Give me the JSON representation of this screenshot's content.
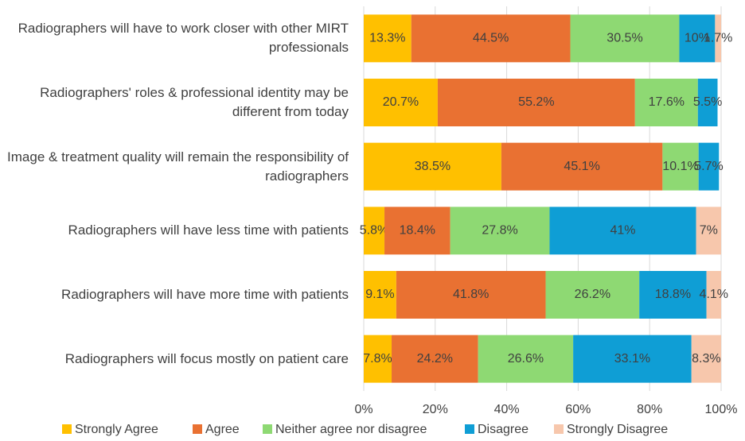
{
  "chart_data": {
    "type": "stacked-bar-horizontal",
    "categories": [
      "Radiographers will have to work closer with other MIRT professionals",
      "Radiographers' roles & professional identity may be different from today",
      "Image & treatment quality will remain the responsibility of radiographers",
      "Radiographers will have less time with patients",
      "Radiographers will have more time with patients",
      "Radiographers will focus mostly on patient care"
    ],
    "series": [
      {
        "name": "Strongly Agree",
        "color": "#FFC000",
        "values": [
          13.3,
          20.7,
          38.5,
          5.8,
          9.1,
          7.8
        ],
        "value_labels": [
          "13.3%",
          "20.7%",
          "38.5%",
          "5.8%",
          "9.1%",
          "7.8%"
        ]
      },
      {
        "name": "Agree",
        "color": "#E97132",
        "values": [
          44.5,
          55.2,
          45.1,
          18.4,
          41.8,
          24.2
        ],
        "value_labels": [
          "44.5%",
          "55.2%",
          "45.1%",
          "18.4%",
          "41.8%",
          "24.2%"
        ]
      },
      {
        "name": "Neither agree nor disagree",
        "color": "#8ED973",
        "values": [
          30.5,
          17.6,
          10.1,
          27.8,
          26.2,
          26.6
        ],
        "value_labels": [
          "30.5%",
          "17.6%",
          "10.1%",
          "27.8%",
          "26.2%",
          "26.6%"
        ]
      },
      {
        "name": "Disagree",
        "color": "#0F9ED5",
        "values": [
          10,
          5.5,
          5.7,
          41,
          18.8,
          33.1
        ],
        "value_labels": [
          "10%",
          "5.5%",
          "5.7%",
          "41%",
          "18.8%",
          "33.1%"
        ]
      },
      {
        "name": "Strongly Disagree",
        "color": "#F7C7AC",
        "values": [
          1.7,
          null,
          null,
          7,
          4.1,
          8.3
        ],
        "value_labels": [
          "1.7%",
          null,
          null,
          "7%",
          "4.1%",
          "8.3%"
        ]
      }
    ],
    "xlim": [
      0,
      100
    ],
    "xticks": [
      {
        "value": 0,
        "label": "0%"
      },
      {
        "value": 20,
        "label": "20%"
      },
      {
        "value": 40,
        "label": "40%"
      },
      {
        "value": 60,
        "label": "60%"
      },
      {
        "value": 80,
        "label": "80%"
      },
      {
        "value": 100,
        "label": "100%"
      }
    ],
    "grid": true,
    "legend": "bottom"
  }
}
